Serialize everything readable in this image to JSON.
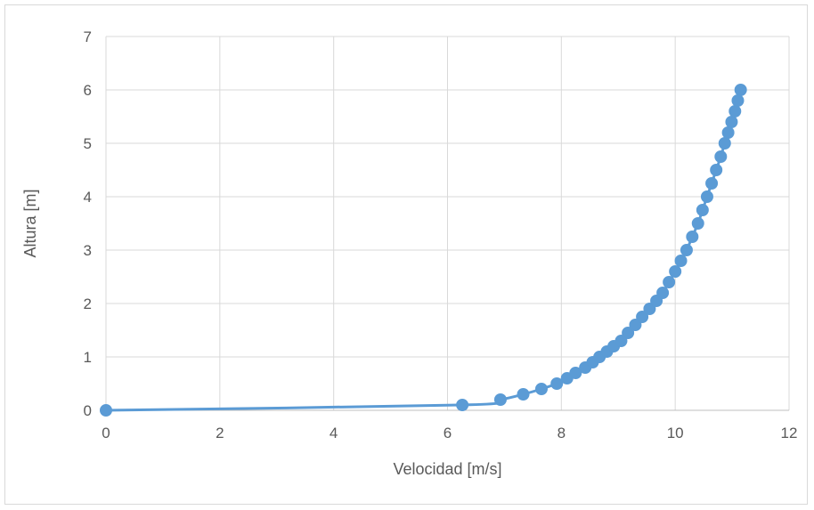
{
  "chart_data": {
    "type": "scatter",
    "title": "",
    "xlabel": "Velocidad [m/s]",
    "ylabel": "Altura [m]",
    "xlim": [
      0,
      12
    ],
    "ylim": [
      0,
      7
    ],
    "xticks": [
      0,
      2,
      4,
      6,
      8,
      10,
      12
    ],
    "yticks": [
      0,
      1,
      2,
      3,
      4,
      5,
      6,
      7
    ],
    "grid": true,
    "legend": "none",
    "series": [
      {
        "color": "#5b9bd5",
        "style": "smooth line with circle markers",
        "x": [
          0,
          6.26,
          6.93,
          7.33,
          7.65,
          7.92,
          8.1,
          8.25,
          8.42,
          8.55,
          8.67,
          8.8,
          8.92,
          9.05,
          9.17,
          9.3,
          9.42,
          9.55,
          9.67,
          9.78,
          9.89,
          10.0,
          10.1,
          10.2,
          10.3,
          10.4,
          10.48,
          10.56,
          10.64,
          10.72,
          10.8,
          10.87,
          10.93,
          10.99,
          11.05,
          11.1,
          11.15
        ],
        "y": [
          0,
          0.1,
          0.2,
          0.3,
          0.4,
          0.5,
          0.6,
          0.7,
          0.8,
          0.9,
          1.0,
          1.1,
          1.2,
          1.3,
          1.45,
          1.6,
          1.75,
          1.9,
          2.05,
          2.2,
          2.4,
          2.6,
          2.8,
          3.0,
          3.25,
          3.5,
          3.75,
          4.0,
          4.25,
          4.5,
          4.75,
          5.0,
          5.2,
          5.4,
          5.6,
          5.8,
          6.0
        ]
      }
    ]
  }
}
